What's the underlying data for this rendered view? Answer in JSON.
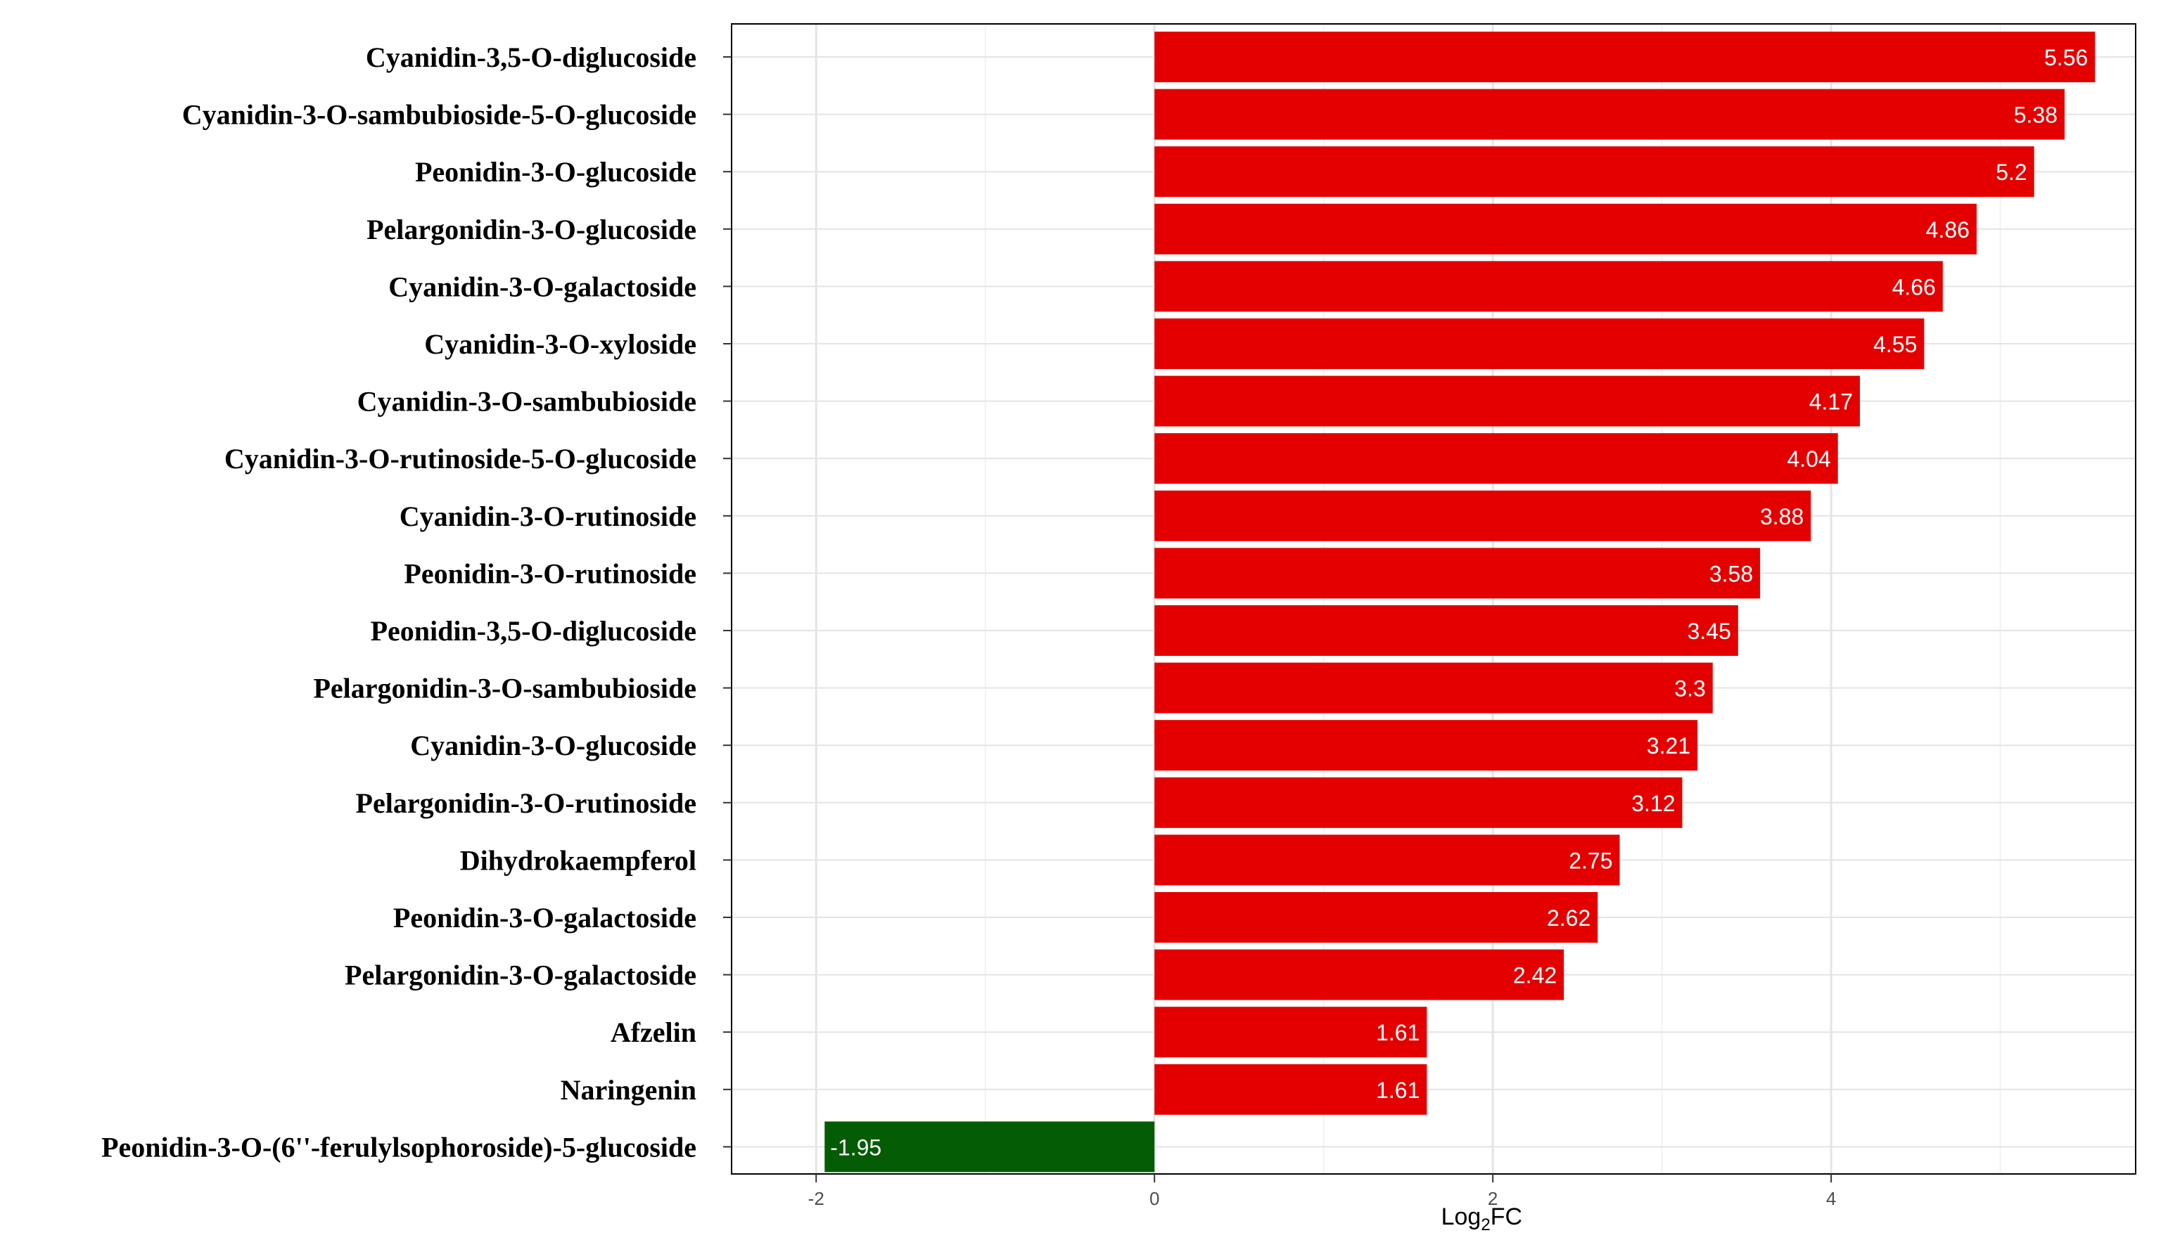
{
  "chart_data": {
    "type": "bar",
    "orientation": "horizontal",
    "title": "",
    "xlabel": {
      "base": "Log",
      "sub": "2",
      "suffix": "FC"
    },
    "ylabel": "",
    "xlim": [
      -2.5,
      5.8
    ],
    "xticks": [
      -2,
      0,
      2,
      4
    ],
    "xtick_labels": [
      "-2",
      "0",
      "2",
      "4"
    ],
    "grid": true,
    "legend": "none",
    "colors": {
      "positive": "#e50000",
      "negative": "#045c04",
      "grid_major": "#e4e4e4",
      "grid_minor": "#f2f2f2",
      "border": "#000000"
    },
    "categories": [
      "Cyanidin-3,5-O-diglucoside",
      "Cyanidin-3-O-sambubioside-5-O-glucoside",
      "Peonidin-3-O-glucoside",
      "Pelargonidin-3-O-glucoside",
      "Cyanidin-3-O-galactoside",
      "Cyanidin-3-O-xyloside",
      "Cyanidin-3-O-sambubioside",
      "Cyanidin-3-O-rutinoside-5-O-glucoside",
      "Cyanidin-3-O-rutinoside",
      "Peonidin-3-O-rutinoside",
      "Peonidin-3,5-O-diglucoside",
      "Pelargonidin-3-O-sambubioside",
      "Cyanidin-3-O-glucoside",
      "Pelargonidin-3-O-rutinoside",
      "Dihydrokaempferol",
      "Peonidin-3-O-galactoside",
      "Pelargonidin-3-O-galactoside",
      "Afzelin",
      "Naringenin",
      "Peonidin-3-O-(6''-ferulylsophoroside)-5-glucoside"
    ],
    "values": [
      5.56,
      5.38,
      5.2,
      4.86,
      4.66,
      4.55,
      4.17,
      4.04,
      3.88,
      3.58,
      3.45,
      3.3,
      3.21,
      3.12,
      2.75,
      2.62,
      2.42,
      1.61,
      1.61,
      -1.95
    ],
    "value_labels": [
      "5.56",
      "5.38",
      "5.2",
      "4.86",
      "4.66",
      "4.55",
      "4.17",
      "4.04",
      "3.88",
      "3.58",
      "3.45",
      "3.3",
      "3.21",
      "3.12",
      "2.75",
      "2.62",
      "2.42",
      "1.61",
      "1.61",
      "-1.95"
    ]
  }
}
